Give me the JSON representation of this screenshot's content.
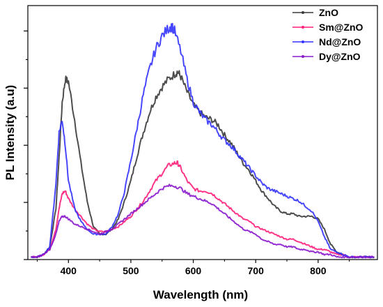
{
  "chart_data": {
    "type": "line",
    "title": "",
    "xlabel": "Wavelength (nm)",
    "ylabel": "PL Intensity (a.u)",
    "xlim": [
      335,
      895
    ],
    "ylim": [
      0,
      1.0
    ],
    "xticks": [
      400,
      500,
      600,
      700,
      800
    ],
    "y_tick_labels": false,
    "grid": false,
    "legend_position": "top-right",
    "series": [
      {
        "name": "ZnO",
        "color": "#3a3a3a",
        "x": [
          340,
          350,
          360,
          370,
          380,
          385,
          390,
          395,
          400,
          410,
          420,
          430,
          440,
          450,
          460,
          470,
          480,
          490,
          500,
          510,
          520,
          530,
          540,
          550,
          560,
          570,
          575,
          580,
          590,
          600,
          610,
          620,
          630,
          640,
          650,
          660,
          670,
          680,
          690,
          700,
          710,
          720,
          730,
          740,
          750,
          760,
          770,
          780,
          790,
          800,
          810,
          820,
          830,
          840,
          850,
          860,
          870,
          880,
          890
        ],
        "y": [
          0.01,
          0.01,
          0.02,
          0.05,
          0.2,
          0.4,
          0.62,
          0.71,
          0.7,
          0.55,
          0.38,
          0.23,
          0.13,
          0.1,
          0.1,
          0.12,
          0.16,
          0.23,
          0.31,
          0.41,
          0.5,
          0.58,
          0.64,
          0.68,
          0.71,
          0.73,
          0.74,
          0.72,
          0.66,
          0.61,
          0.58,
          0.56,
          0.55,
          0.53,
          0.49,
          0.46,
          0.42,
          0.38,
          0.35,
          0.31,
          0.27,
          0.24,
          0.21,
          0.19,
          0.18,
          0.18,
          0.17,
          0.17,
          0.17,
          0.16,
          0.12,
          0.06,
          0.03,
          0.02,
          0.01,
          0.01,
          0.01,
          0.01,
          0.01
        ]
      },
      {
        "name": "Sm@ZnO",
        "color": "#ff1f7a",
        "x": [
          340,
          350,
          360,
          370,
          380,
          385,
          390,
          395,
          400,
          410,
          420,
          430,
          440,
          450,
          460,
          470,
          480,
          490,
          500,
          510,
          520,
          530,
          540,
          550,
          560,
          570,
          575,
          580,
          590,
          600,
          610,
          620,
          630,
          640,
          650,
          660,
          670,
          680,
          690,
          700,
          710,
          720,
          730,
          740,
          750,
          760,
          770,
          780,
          790,
          800,
          810,
          820,
          830,
          840,
          850,
          860,
          870,
          880,
          890
        ],
        "y": [
          0.01,
          0.01,
          0.02,
          0.04,
          0.12,
          0.2,
          0.26,
          0.27,
          0.24,
          0.2,
          0.17,
          0.14,
          0.12,
          0.11,
          0.11,
          0.12,
          0.13,
          0.15,
          0.17,
          0.2,
          0.23,
          0.27,
          0.31,
          0.34,
          0.37,
          0.38,
          0.38,
          0.36,
          0.31,
          0.28,
          0.27,
          0.27,
          0.26,
          0.24,
          0.22,
          0.2,
          0.18,
          0.16,
          0.15,
          0.13,
          0.12,
          0.11,
          0.1,
          0.09,
          0.08,
          0.08,
          0.07,
          0.06,
          0.05,
          0.04,
          0.04,
          0.03,
          0.02,
          0.02,
          0.01,
          0.01,
          0.01,
          0.01,
          0.01
        ]
      },
      {
        "name": "Nd@ZnO",
        "color": "#3333ff",
        "x": [
          340,
          350,
          360,
          370,
          380,
          385,
          390,
          395,
          400,
          410,
          420,
          430,
          440,
          450,
          460,
          470,
          480,
          490,
          500,
          510,
          520,
          530,
          540,
          550,
          560,
          565,
          570,
          580,
          590,
          600,
          610,
          620,
          630,
          640,
          650,
          660,
          670,
          680,
          690,
          700,
          710,
          720,
          730,
          740,
          750,
          760,
          770,
          780,
          790,
          800,
          810,
          820,
          830,
          840,
          850,
          860,
          870,
          880,
          890
        ],
        "y": [
          0.01,
          0.01,
          0.02,
          0.05,
          0.3,
          0.5,
          0.55,
          0.45,
          0.31,
          0.2,
          0.15,
          0.12,
          0.1,
          0.1,
          0.1,
          0.13,
          0.18,
          0.27,
          0.39,
          0.52,
          0.65,
          0.75,
          0.83,
          0.88,
          0.91,
          0.92,
          0.9,
          0.82,
          0.71,
          0.62,
          0.58,
          0.55,
          0.53,
          0.5,
          0.47,
          0.45,
          0.42,
          0.39,
          0.36,
          0.33,
          0.3,
          0.28,
          0.27,
          0.26,
          0.25,
          0.24,
          0.23,
          0.21,
          0.19,
          0.15,
          0.09,
          0.04,
          0.03,
          0.02,
          0.01,
          0.01,
          0.01,
          0.01,
          0.01
        ]
      },
      {
        "name": "Dy@ZnO",
        "color": "#8a18cc",
        "x": [
          340,
          350,
          360,
          370,
          380,
          385,
          390,
          395,
          400,
          410,
          420,
          430,
          440,
          450,
          460,
          470,
          480,
          490,
          500,
          510,
          520,
          530,
          540,
          550,
          560,
          570,
          580,
          590,
          600,
          610,
          620,
          630,
          640,
          650,
          660,
          670,
          680,
          690,
          700,
          710,
          720,
          730,
          740,
          750,
          760,
          770,
          780,
          790,
          800,
          810,
          820,
          830,
          840,
          850,
          860,
          870,
          880,
          890
        ],
        "y": [
          0.01,
          0.01,
          0.02,
          0.04,
          0.1,
          0.15,
          0.17,
          0.17,
          0.16,
          0.14,
          0.13,
          0.12,
          0.11,
          0.1,
          0.11,
          0.12,
          0.14,
          0.16,
          0.18,
          0.2,
          0.22,
          0.24,
          0.26,
          0.28,
          0.29,
          0.29,
          0.28,
          0.26,
          0.25,
          0.24,
          0.23,
          0.22,
          0.2,
          0.18,
          0.16,
          0.14,
          0.12,
          0.11,
          0.1,
          0.08,
          0.07,
          0.06,
          0.06,
          0.05,
          0.05,
          0.04,
          0.04,
          0.03,
          0.03,
          0.02,
          0.02,
          0.01,
          0.01,
          0.01,
          0.01,
          0.01,
          0.01,
          0.01
        ]
      }
    ]
  }
}
